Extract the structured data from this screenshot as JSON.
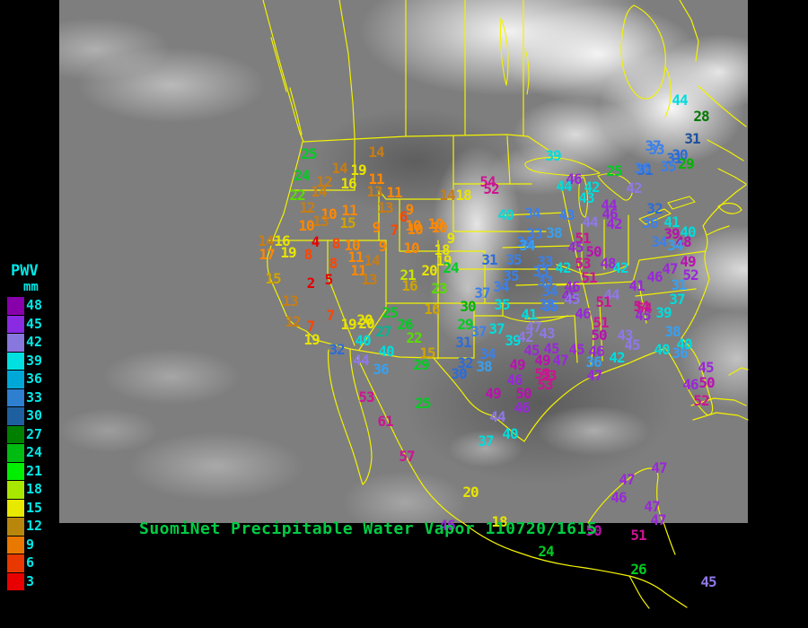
{
  "window": {
    "background": "#000000"
  },
  "map": {
    "outline_color": "#f2f200",
    "satellite_base": "#7e7e7e"
  },
  "title": {
    "text": "SuomiNet Precipitable Water Vapor",
    "timestamp": "110720/1615",
    "color": "#00cc44"
  },
  "legend": {
    "title": "PWV",
    "units": "mm",
    "text_color": "#00e8e8",
    "entries": [
      {
        "value": "48",
        "color": "#8800aa"
      },
      {
        "value": "45",
        "color": "#8a2be2"
      },
      {
        "value": "42",
        "color": "#8877dd"
      },
      {
        "value": "39",
        "color": "#00e0e0"
      },
      {
        "value": "36",
        "color": "#00a8d8"
      },
      {
        "value": "33",
        "color": "#2e7fd0"
      },
      {
        "value": "30",
        "color": "#1e5fa0"
      },
      {
        "value": "27",
        "color": "#008000"
      },
      {
        "value": "24",
        "color": "#00bb11"
      },
      {
        "value": "21",
        "color": "#00ee00"
      },
      {
        "value": "18",
        "color": "#a8e800"
      },
      {
        "value": "15",
        "color": "#e8e800"
      },
      {
        "value": "12",
        "color": "#b8860b"
      },
      {
        "value": "9",
        "color": "#e87800"
      },
      {
        "value": "6",
        "color": "#e83800"
      },
      {
        "value": "3",
        "color": "#e80000"
      }
    ]
  },
  "stations": [
    [
      "25",
      344,
      172,
      "#00cc22"
    ],
    [
      "24",
      336,
      196,
      "#00cc22"
    ],
    [
      "22",
      331,
      218,
      "#58dc00"
    ],
    [
      "14",
      419,
      170,
      "#c87d14"
    ],
    [
      "14",
      378,
      188,
      "#c87d14"
    ],
    [
      "19",
      399,
      190,
      "#e8e400"
    ],
    [
      "12",
      361,
      203,
      "#c87d14"
    ],
    [
      "16",
      388,
      205,
      "#e8e400"
    ],
    [
      "11",
      419,
      200,
      "#ff8800"
    ],
    [
      "14",
      355,
      214,
      "#c87d14"
    ],
    [
      "13",
      417,
      214,
      "#c87d14"
    ],
    [
      "11",
      439,
      215,
      "#ff8800"
    ],
    [
      "12",
      342,
      232,
      "#c87d14"
    ],
    [
      "10",
      366,
      239,
      "#ff8800"
    ],
    [
      "11",
      389,
      235,
      "#ff8800"
    ],
    [
      "13",
      429,
      232,
      "#c87d14"
    ],
    [
      "9",
      456,
      234,
      "#ff8800"
    ],
    [
      "6",
      449,
      242,
      "#ff4400"
    ],
    [
      "10",
      341,
      252,
      "#ff8800"
    ],
    [
      "13",
      357,
      247,
      "#c87d14"
    ],
    [
      "15",
      387,
      249,
      "#d0a400"
    ],
    [
      "9",
      419,
      254,
      "#ff8800"
    ],
    [
      "7",
      439,
      257,
      "#ff4400"
    ],
    [
      "10",
      462,
      256,
      "#ff8800"
    ],
    [
      "10",
      489,
      254,
      "#ff8800"
    ],
    [
      "14",
      296,
      269,
      "#c87d14"
    ],
    [
      "16",
      314,
      269,
      "#e8e400"
    ],
    [
      "4",
      351,
      270,
      "#e60000"
    ],
    [
      "8",
      374,
      272,
      "#ff4400"
    ],
    [
      "10",
      392,
      274,
      "#ff8800"
    ],
    [
      "9",
      426,
      275,
      "#ff8800"
    ],
    [
      "17",
      297,
      284,
      "#ff8800"
    ],
    [
      "19",
      321,
      282,
      "#e8e400"
    ],
    [
      "8",
      343,
      284,
      "#ff4400"
    ],
    [
      "8",
      371,
      294,
      "#ff4400"
    ],
    [
      "11",
      396,
      287,
      "#ff8800"
    ],
    [
      "14",
      414,
      291,
      "#c87d14"
    ],
    [
      "15",
      304,
      311,
      "#d0a400"
    ],
    [
      "2",
      346,
      316,
      "#e60000"
    ],
    [
      "5",
      366,
      312,
      "#e60000"
    ],
    [
      "11",
      399,
      302,
      "#ff8800"
    ],
    [
      "13",
      411,
      312,
      "#c87d14"
    ],
    [
      "13",
      323,
      336,
      "#c87d14"
    ],
    [
      "12",
      326,
      359,
      "#c87d14"
    ],
    [
      "7",
      346,
      364,
      "#ff4400"
    ],
    [
      "7",
      368,
      352,
      "#ff4400"
    ],
    [
      "19",
      347,
      379,
      "#e8e400"
    ],
    [
      "19",
      388,
      362,
      "#e8e400"
    ],
    [
      "20",
      408,
      361,
      "#e8e400"
    ],
    [
      "10",
      460,
      252,
      "#ff8800"
    ],
    [
      "10",
      485,
      250,
      "#ff8800"
    ],
    [
      "9",
      502,
      266,
      "#e8e400"
    ],
    [
      "10",
      458,
      277,
      "#ff8800"
    ],
    [
      "18",
      492,
      279,
      "#e8e400"
    ],
    [
      "19",
      494,
      291,
      "#e8e400"
    ],
    [
      "21",
      454,
      307,
      "#c8e400"
    ],
    [
      "16",
      456,
      319,
      "#d0a400"
    ],
    [
      "20",
      478,
      302,
      "#e8e400"
    ],
    [
      "24",
      502,
      299,
      "#00cc22"
    ],
    [
      "23",
      489,
      322,
      "#58dc00"
    ],
    [
      "14",
      498,
      218,
      "#c87d14"
    ],
    [
      "18",
      516,
      218,
      "#e8e400"
    ],
    [
      "54",
      543,
      203,
      "#cc1492"
    ],
    [
      "52",
      547,
      211,
      "#cc1492"
    ],
    [
      "40",
      563,
      240,
      "#00dcdc"
    ],
    [
      "31",
      545,
      290,
      "#2c6cd8"
    ],
    [
      "35",
      572,
      290,
      "#3c80e8"
    ],
    [
      "35",
      569,
      308,
      "#3c80e8"
    ],
    [
      "34",
      558,
      320,
      "#3c80e8"
    ],
    [
      "37",
      537,
      327,
      "#3c80e8"
    ],
    [
      "34",
      593,
      238,
      "#3c80e8"
    ],
    [
      "33",
      595,
      261,
      "#3c80e8"
    ],
    [
      "38",
      617,
      260,
      "#38a0f0"
    ],
    [
      "34",
      584,
      270,
      "#3c80e8"
    ],
    [
      "51",
      649,
      266,
      "#cc1492"
    ],
    [
      "45",
      641,
      276,
      "#9928d8"
    ],
    [
      "50",
      661,
      281,
      "#bb10b0"
    ],
    [
      "39",
      616,
      174,
      "#00dcdc"
    ],
    [
      "46",
      639,
      200,
      "#9928d8"
    ],
    [
      "44",
      628,
      208,
      "#00dcdc"
    ],
    [
      "42",
      659,
      209,
      "#00dcdc"
    ],
    [
      "25",
      684,
      191,
      "#00cc22"
    ],
    [
      "31",
      718,
      190,
      "#2c6cd8"
    ],
    [
      "43",
      653,
      221,
      "#00dcdc"
    ],
    [
      "42",
      706,
      210,
      "#9078e8"
    ],
    [
      "43",
      631,
      240,
      "#3c80e8"
    ],
    [
      "44",
      657,
      248,
      "#9078e8"
    ],
    [
      "44",
      678,
      229,
      "#9928d8"
    ],
    [
      "46",
      679,
      239,
      "#9928d8"
    ],
    [
      "42",
      684,
      250,
      "#9928d8"
    ],
    [
      "32",
      729,
      233,
      "#2c6cd8"
    ],
    [
      "36",
      724,
      249,
      "#3c80e8"
    ],
    [
      "41",
      748,
      248,
      "#00dcdc"
    ],
    [
      "39",
      748,
      261,
      "#bb10b0"
    ],
    [
      "40",
      766,
      259,
      "#00dcdc"
    ],
    [
      "34",
      734,
      270,
      "#3c80e8"
    ],
    [
      "48",
      761,
      270,
      "#bb10b0"
    ],
    [
      "34",
      752,
      274,
      "#38a0f0"
    ],
    [
      "44",
      757,
      112,
      "#00dcdc"
    ],
    [
      "28",
      781,
      130,
      "#007800"
    ],
    [
      "31",
      771,
      155,
      "#1c4f9c"
    ],
    [
      "37",
      727,
      163,
      "#3c80e8"
    ],
    [
      "33",
      731,
      167,
      "#3c80e8"
    ],
    [
      "30",
      757,
      173,
      "#2c6cd8"
    ],
    [
      "31",
      751,
      177,
      "#2c6cd8"
    ],
    [
      "36",
      715,
      188,
      "#3c80e8"
    ],
    [
      "35",
      744,
      186,
      "#3c80e8"
    ],
    [
      "29",
      764,
      183,
      "#00b400"
    ],
    [
      "49",
      766,
      292,
      "#bb10b0"
    ],
    [
      "47",
      746,
      300,
      "#9928d8"
    ],
    [
      "46",
      729,
      309,
      "#9928d8"
    ],
    [
      "52",
      769,
      307,
      "#9928d8"
    ],
    [
      "41",
      709,
      319,
      "#9928d8"
    ],
    [
      "31",
      756,
      318,
      "#38a0f0"
    ],
    [
      "37",
      754,
      334,
      "#00dcdc"
    ],
    [
      "54",
      717,
      344,
      "#cc1492"
    ],
    [
      "45",
      716,
      352,
      "#9928d8"
    ],
    [
      "39",
      739,
      349,
      "#00dcdc"
    ],
    [
      "34",
      587,
      274,
      "#38a0f0"
    ],
    [
      "33",
      607,
      292,
      "#3c80e8"
    ],
    [
      "53",
      649,
      294,
      "#cc1492"
    ],
    [
      "48",
      677,
      294,
      "#9928d8"
    ],
    [
      "42",
      627,
      299,
      "#00dcdc"
    ],
    [
      "42",
      691,
      299,
      "#00dcdc"
    ],
    [
      "33",
      602,
      303,
      "#3c80e8"
    ],
    [
      "51",
      656,
      310,
      "#cc1492"
    ],
    [
      "33",
      607,
      314,
      "#3c80e8"
    ],
    [
      "46",
      637,
      320,
      "#9928d8"
    ],
    [
      "34",
      612,
      325,
      "#3c80e8"
    ],
    [
      "45",
      634,
      330,
      "#9928d8"
    ],
    [
      "44",
      681,
      329,
      "#9078e8"
    ],
    [
      "35",
      609,
      340,
      "#3c80e8"
    ],
    [
      "51",
      672,
      337,
      "#cc1492"
    ],
    [
      "46",
      649,
      350,
      "#9928d8"
    ],
    [
      "51",
      669,
      360,
      "#cc1492"
    ],
    [
      "47",
      594,
      365,
      "#9078e8"
    ],
    [
      "45",
      637,
      334,
      "#9078e8"
    ],
    [
      "54",
      714,
      342,
      "#cc1492"
    ],
    [
      "50",
      667,
      374,
      "#bb10b0"
    ],
    [
      "43",
      696,
      374,
      "#9078e8"
    ],
    [
      "38",
      749,
      370,
      "#38a0f0"
    ],
    [
      "45",
      614,
      389,
      "#9928d8"
    ],
    [
      "45",
      642,
      390,
      "#9928d8"
    ],
    [
      "46",
      664,
      392,
      "#9928d8"
    ],
    [
      "45",
      704,
      385,
      "#9078e8"
    ],
    [
      "40",
      737,
      390,
      "#00dcdc"
    ],
    [
      "40",
      762,
      384,
      "#00dcdc"
    ],
    [
      "36",
      757,
      394,
      "#38a0f0"
    ],
    [
      "49",
      604,
      402,
      "#bb10b0"
    ],
    [
      "47",
      624,
      402,
      "#9928d8"
    ],
    [
      "42",
      687,
      399,
      "#00dcdc"
    ],
    [
      "36",
      661,
      404,
      "#38a0f0"
    ],
    [
      "53",
      604,
      417,
      "#cc1492"
    ],
    [
      "53",
      607,
      429,
      "#cc1492"
    ],
    [
      "47",
      662,
      419,
      "#9928d8"
    ],
    [
      "45",
      786,
      410,
      "#9928d8"
    ],
    [
      "46",
      769,
      429,
      "#9928d8"
    ],
    [
      "50",
      787,
      427,
      "#bb10b0"
    ],
    [
      "52",
      781,
      447,
      "#cc1492"
    ],
    [
      "20",
      406,
      357,
      "#e8e400"
    ],
    [
      "25",
      434,
      349,
      "#00cc22"
    ],
    [
      "16",
      481,
      345,
      "#d0a400"
    ],
    [
      "30",
      521,
      342,
      "#00b400"
    ],
    [
      "35",
      559,
      340,
      "#00dcdc"
    ],
    [
      "35",
      613,
      342,
      "#3c80e8"
    ],
    [
      "41",
      589,
      351,
      "#00dcdc"
    ],
    [
      "26",
      451,
      362,
      "#00cc22"
    ],
    [
      "27",
      427,
      370,
      "#00b890"
    ],
    [
      "22",
      461,
      377,
      "#58dc00"
    ],
    [
      "29",
      518,
      362,
      "#00cc22"
    ],
    [
      "37",
      533,
      370,
      "#3c80e8"
    ],
    [
      "37",
      553,
      367,
      "#00dcdc"
    ],
    [
      "39",
      571,
      380,
      "#00dcdc"
    ],
    [
      "42",
      585,
      376,
      "#9078e8"
    ],
    [
      "43",
      609,
      372,
      "#9078e8"
    ],
    [
      "40",
      404,
      380,
      "#00dcdc"
    ],
    [
      "40",
      430,
      392,
      "#00dcdc"
    ],
    [
      "31",
      516,
      382,
      "#2c6cd8"
    ],
    [
      "34",
      543,
      395,
      "#3c80e8"
    ],
    [
      "45",
      592,
      391,
      "#9928d8"
    ],
    [
      "44",
      402,
      402,
      "#9078e8"
    ],
    [
      "36",
      424,
      412,
      "#38a0f0"
    ],
    [
      "15",
      476,
      394,
      "#d0a400"
    ],
    [
      "29",
      469,
      407,
      "#00cc22"
    ],
    [
      "32",
      518,
      405,
      "#2c6cd8"
    ],
    [
      "38",
      539,
      409,
      "#38a0f0"
    ],
    [
      "30",
      511,
      417,
      "#2c6cd8"
    ],
    [
      "49",
      576,
      407,
      "#bb10b0"
    ],
    [
      "46",
      573,
      424,
      "#9928d8"
    ],
    [
      "53",
      611,
      419,
      "#cc1492"
    ],
    [
      "32",
      375,
      390,
      "#2c6cd8"
    ],
    [
      "53",
      408,
      443,
      "#cc1492"
    ],
    [
      "49",
      549,
      439,
      "#bb10b0"
    ],
    [
      "50",
      583,
      439,
      "#bb10b0"
    ],
    [
      "25",
      471,
      450,
      "#00cc22"
    ],
    [
      "61",
      429,
      470,
      "#cc1492"
    ],
    [
      "44",
      554,
      465,
      "#9078e8"
    ],
    [
      "46",
      581,
      455,
      "#9928d8"
    ],
    [
      "57",
      453,
      509,
      "#cc1492"
    ],
    [
      "37",
      541,
      492,
      "#00dcdc"
    ],
    [
      "40",
      568,
      484,
      "#00dcdc"
    ],
    [
      "20",
      524,
      549,
      "#e8e400"
    ],
    [
      "46",
      498,
      586,
      "#9928d8"
    ],
    [
      "18",
      556,
      582,
      "#e8e400"
    ],
    [
      "47",
      734,
      522,
      "#9928d8"
    ],
    [
      "47",
      698,
      535,
      "#9928d8"
    ],
    [
      "46",
      689,
      555,
      "#9928d8"
    ],
    [
      "47",
      726,
      565,
      "#9928d8"
    ],
    [
      "47",
      733,
      580,
      "#9928d8"
    ],
    [
      "50",
      661,
      592,
      "#bb10b0"
    ],
    [
      "51",
      711,
      597,
      "#cc1492"
    ],
    [
      "24",
      608,
      615,
      "#00cc22"
    ],
    [
      "26",
      711,
      635,
      "#00cc22"
    ],
    [
      "45",
      789,
      649,
      "#9078e8"
    ]
  ]
}
